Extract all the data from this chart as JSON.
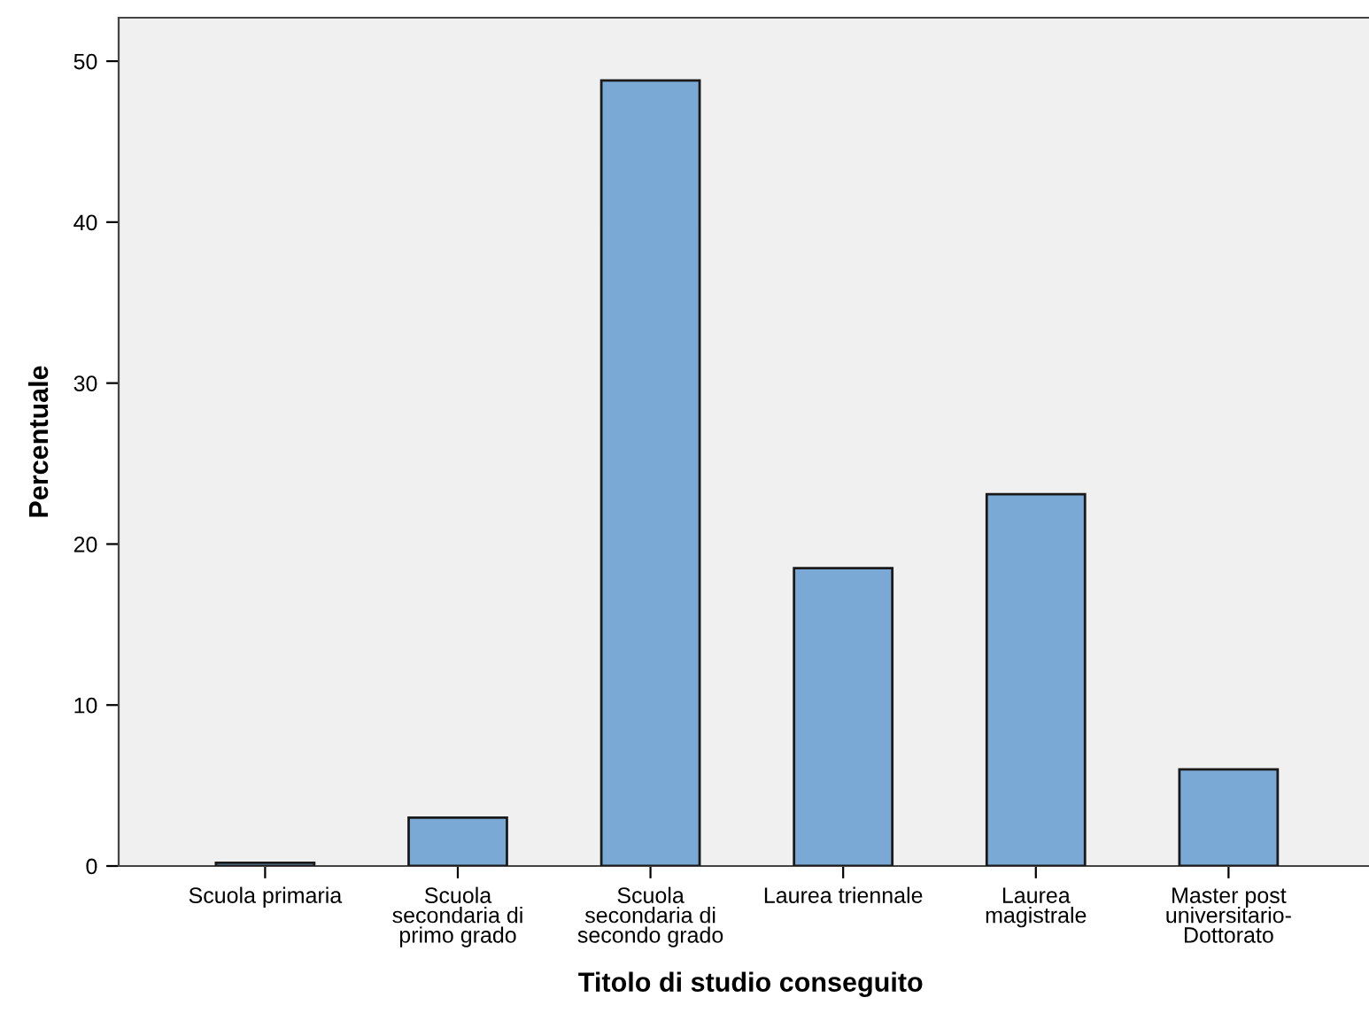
{
  "chart_data": {
    "type": "bar",
    "xlabel": "Titolo di studio conseguito",
    "ylabel": "Percentuale",
    "categories": [
      "Scuola primaria",
      "Scuola\nsecondaria di\nprimo grado",
      "Scuola\nsecondaria di\nsecondo grado",
      "Laurea triennale",
      "Laurea\nmagistrale",
      "Master post\nuniversitario-\nDottorato"
    ],
    "values": [
      0.2,
      3.0,
      48.8,
      18.5,
      23.1,
      6.0
    ],
    "color": "#7ba9d6",
    "ylim": [
      0,
      52.7
    ],
    "yticks": [
      0,
      10,
      20,
      30,
      40,
      50
    ],
    "grid": false,
    "legend": false
  }
}
